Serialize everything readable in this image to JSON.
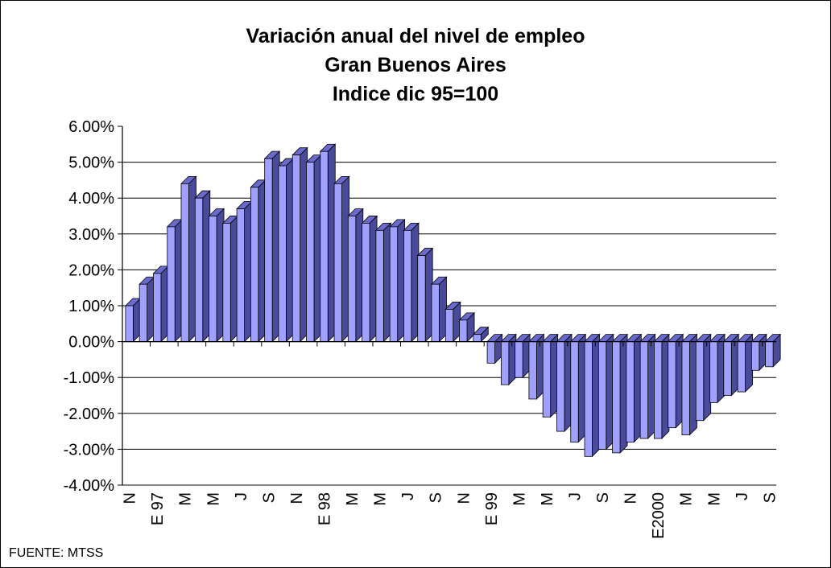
{
  "chart_data": {
    "type": "bar",
    "title": "Variación anual del nivel de empleo",
    "subtitle": "Gran Buenos Aires",
    "subtitle2": "Indice dic 95=100",
    "ylim": [
      -0.04,
      0.06
    ],
    "y_ticks": [
      "6.00%",
      "5.00%",
      "4.00%",
      "3.00%",
      "2.00%",
      "1.00%",
      "0.00%",
      "-1.00%",
      "-2.00%",
      "-3.00%",
      "-4.00%"
    ],
    "y_tick_values": [
      0.06,
      0.05,
      0.04,
      0.03,
      0.02,
      0.01,
      0.0,
      -0.01,
      -0.02,
      -0.03,
      -0.04
    ],
    "x_labels": [
      {
        "index": 0,
        "text": "N"
      },
      {
        "index": 2,
        "text": "E 97"
      },
      {
        "index": 4,
        "text": "M"
      },
      {
        "index": 6,
        "text": "M"
      },
      {
        "index": 8,
        "text": "J"
      },
      {
        "index": 10,
        "text": "S"
      },
      {
        "index": 12,
        "text": "N"
      },
      {
        "index": 14,
        "text": "E 98"
      },
      {
        "index": 16,
        "text": "M"
      },
      {
        "index": 18,
        "text": "M"
      },
      {
        "index": 20,
        "text": "J"
      },
      {
        "index": 22,
        "text": "S"
      },
      {
        "index": 24,
        "text": "N"
      },
      {
        "index": 26,
        "text": "E 99"
      },
      {
        "index": 28,
        "text": "M"
      },
      {
        "index": 30,
        "text": "M"
      },
      {
        "index": 32,
        "text": "J"
      },
      {
        "index": 34,
        "text": "S"
      },
      {
        "index": 36,
        "text": "N"
      },
      {
        "index": 38,
        "text": "E2000"
      },
      {
        "index": 40,
        "text": "M"
      },
      {
        "index": 42,
        "text": "M"
      },
      {
        "index": 44,
        "text": "J"
      },
      {
        "index": 46,
        "text": "S"
      }
    ],
    "values": [
      0.01,
      0.016,
      0.019,
      0.032,
      0.044,
      0.04,
      0.035,
      0.033,
      0.037,
      0.043,
      0.051,
      0.049,
      0.052,
      0.05,
      0.053,
      0.044,
      0.035,
      0.033,
      0.031,
      0.032,
      0.031,
      0.024,
      0.016,
      0.009,
      0.006,
      0.002,
      -0.006,
      -0.012,
      -0.01,
      -0.016,
      -0.021,
      -0.025,
      -0.028,
      -0.032,
      -0.03,
      -0.031,
      -0.028,
      -0.027,
      -0.027,
      -0.024,
      -0.026,
      -0.022,
      -0.017,
      -0.015,
      -0.014,
      -0.008,
      -0.007
    ],
    "grid": true,
    "colors": {
      "bar_front": "#a0a0ff",
      "bar_side": "#4a4a9a",
      "bar_top": "#6a6acc",
      "grid": "#000000"
    }
  },
  "source": "FUENTE: MTSS"
}
